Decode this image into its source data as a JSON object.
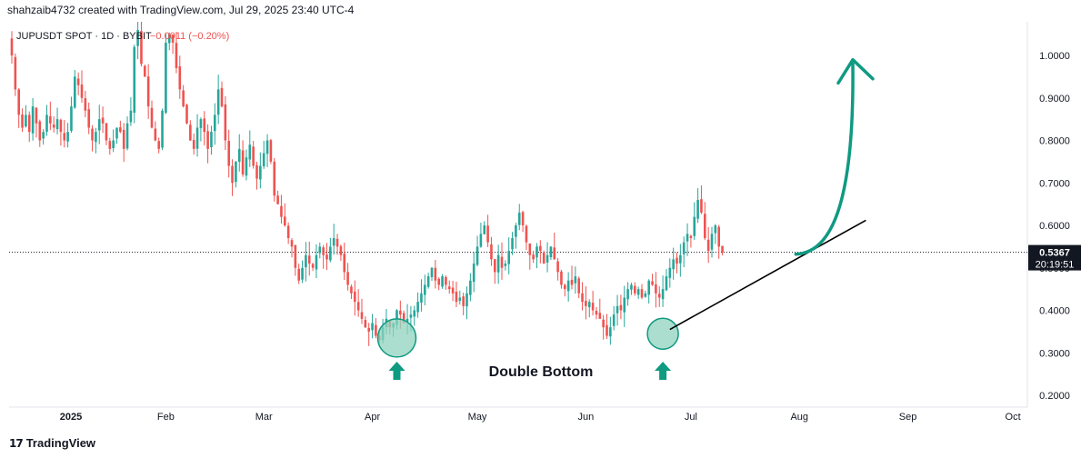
{
  "header": {
    "credit": "shahzaib4732 created with TradingView.com, Jul 29, 2025 23:40 UTC-4"
  },
  "legend": {
    "symbol": "JUPUSDT SPOT · 1D · BYBIT",
    "change": "−0.0011 (−0.20%)"
  },
  "footer": {
    "brand": "TradingView",
    "logo_glyph": "17"
  },
  "colors": {
    "up": "#26a69a",
    "down": "#ef5350",
    "annotation": "#0f9a82",
    "circle_fill": "#8fd3bd",
    "trendline": "#000000",
    "price_tag": "#131722"
  },
  "chart_data": {
    "type": "candlestick",
    "ylim": [
      0.18,
      1.07
    ],
    "y_ticks": [
      1.0,
      0.9,
      0.8,
      0.7,
      0.6,
      0.5,
      0.4,
      0.3,
      0.2
    ],
    "y_tick_labels": [
      "1.0000",
      "0.9000",
      "0.8000",
      "0.7000",
      "0.6000",
      "0.5000",
      "0.4000",
      "0.3000",
      "0.2000"
    ],
    "x_tick_labels": [
      "2025",
      "Feb",
      "Mar",
      "Apr",
      "May",
      "Jun",
      "Jul",
      "Aug",
      "Sep",
      "Oct"
    ],
    "last_price": "0.5367",
    "countdown": "20:19:51",
    "last_price_value": 0.5367,
    "closes": [
      1.0,
      0.92,
      0.86,
      0.83,
      0.86,
      0.82,
      0.88,
      0.84,
      0.8,
      0.82,
      0.86,
      0.84,
      0.83,
      0.85,
      0.82,
      0.8,
      0.82,
      0.88,
      0.95,
      0.93,
      0.9,
      0.87,
      0.83,
      0.8,
      0.82,
      0.85,
      0.84,
      0.8,
      0.78,
      0.8,
      0.83,
      0.82,
      0.78,
      0.84,
      0.87,
      1.02,
      1.06,
      0.98,
      0.95,
      0.88,
      0.83,
      0.8,
      0.78,
      0.87,
      1.03,
      1.05,
      1.03,
      0.97,
      0.92,
      0.88,
      0.84,
      0.8,
      0.78,
      0.83,
      0.85,
      0.82,
      0.78,
      0.82,
      0.86,
      0.92,
      0.88,
      0.8,
      0.74,
      0.7,
      0.75,
      0.78,
      0.72,
      0.76,
      0.79,
      0.74,
      0.71,
      0.74,
      0.77,
      0.8,
      0.75,
      0.67,
      0.65,
      0.62,
      0.6,
      0.57,
      0.55,
      0.5,
      0.47,
      0.5,
      0.53,
      0.51,
      0.5,
      0.53,
      0.55,
      0.53,
      0.52,
      0.55,
      0.57,
      0.55,
      0.53,
      0.49,
      0.46,
      0.44,
      0.42,
      0.4,
      0.38,
      0.36,
      0.35,
      0.37,
      0.34,
      0.33,
      0.36,
      0.38,
      0.36,
      0.37,
      0.4,
      0.39,
      0.37,
      0.38,
      0.39,
      0.4,
      0.42,
      0.44,
      0.46,
      0.48,
      0.5,
      0.47,
      0.46,
      0.48,
      0.46,
      0.45,
      0.44,
      0.42,
      0.43,
      0.41,
      0.44,
      0.47,
      0.51,
      0.55,
      0.58,
      0.6,
      0.56,
      0.52,
      0.49,
      0.53,
      0.5,
      0.51,
      0.54,
      0.57,
      0.6,
      0.63,
      0.6,
      0.56,
      0.53,
      0.52,
      0.55,
      0.54,
      0.51,
      0.53,
      0.55,
      0.52,
      0.49,
      0.46,
      0.45,
      0.47,
      0.46,
      0.48,
      0.44,
      0.42,
      0.41,
      0.42,
      0.4,
      0.39,
      0.38,
      0.36,
      0.34,
      0.36,
      0.39,
      0.41,
      0.4,
      0.43,
      0.45,
      0.46,
      0.44,
      0.45,
      0.43,
      0.44,
      0.47,
      0.46,
      0.44,
      0.43,
      0.45,
      0.48,
      0.5,
      0.52,
      0.51,
      0.53,
      0.56,
      0.58,
      0.57,
      0.62,
      0.66,
      0.63,
      0.57,
      0.54,
      0.58,
      0.6,
      0.55,
      0.5367
    ]
  },
  "annotations": {
    "pattern_label": "Double Bottom"
  }
}
